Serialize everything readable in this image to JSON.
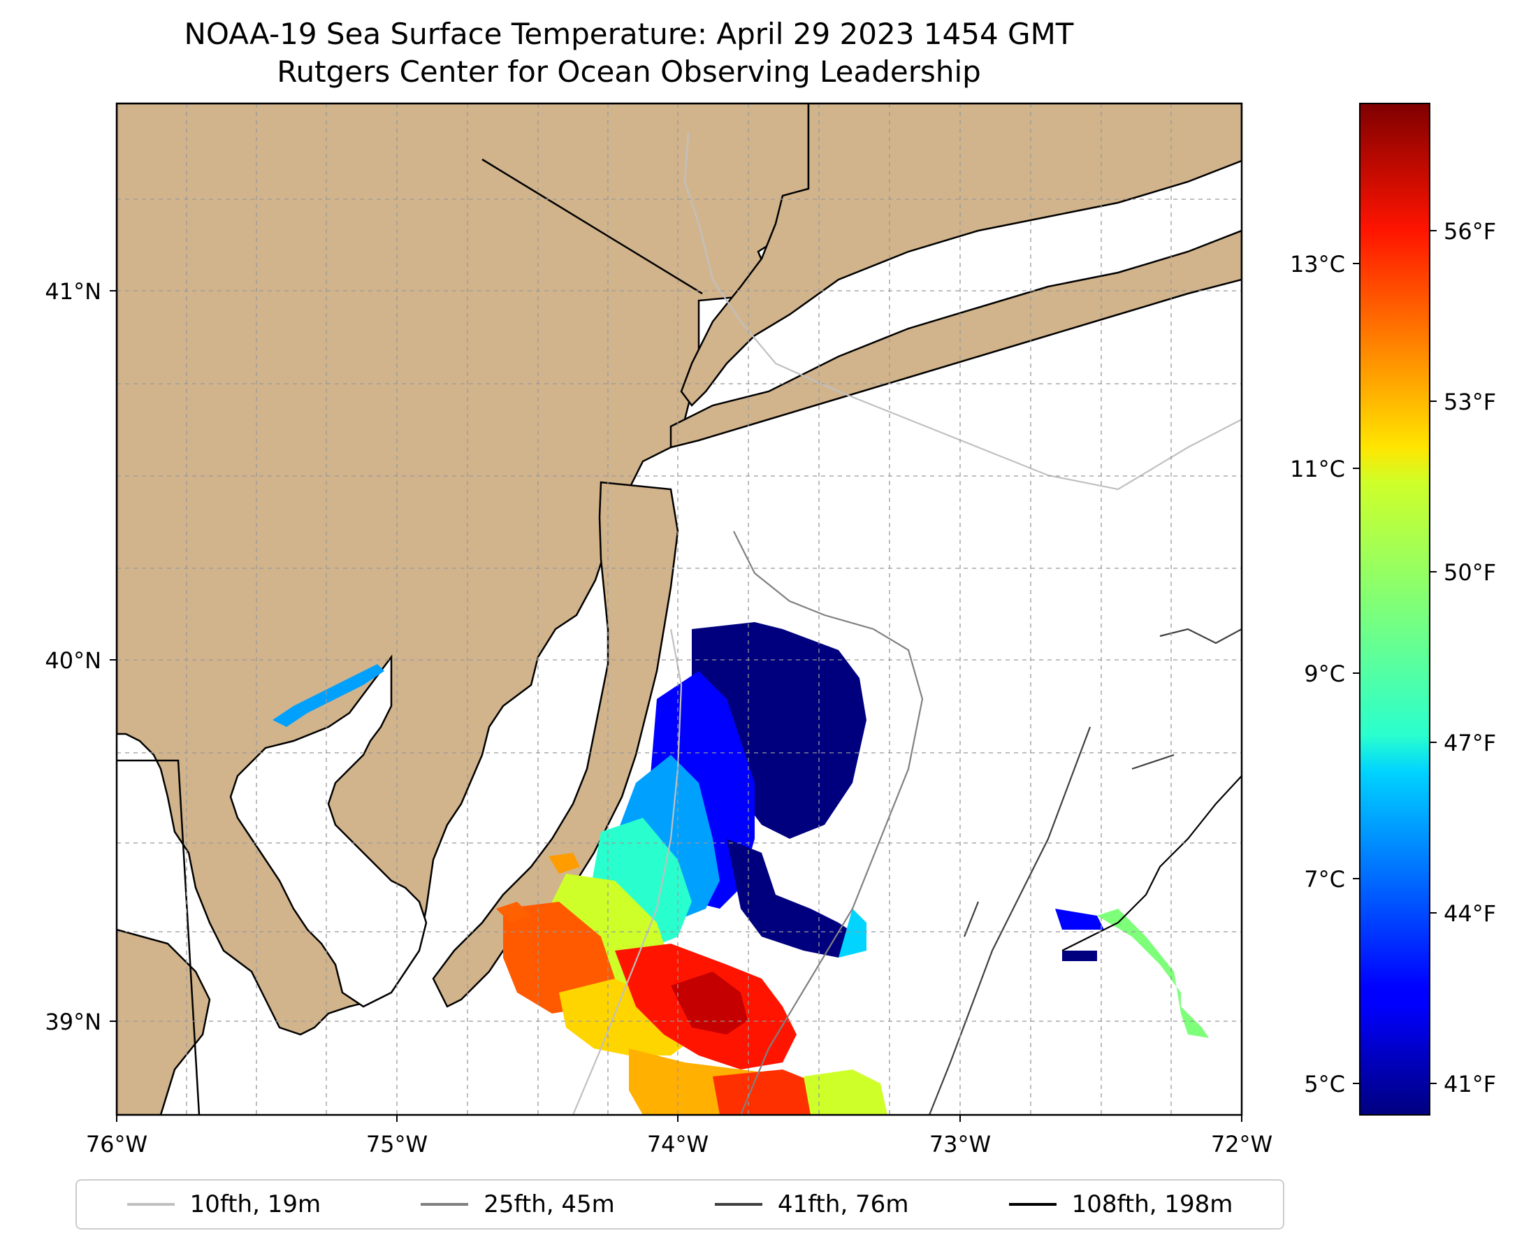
{
  "title": {
    "line1": "NOAA-19 Sea Surface Temperature: April 29 2023 1454 GMT",
    "line2": "Rutgers Center for Ocean Observing Leadership"
  },
  "map": {
    "lon_range": [
      -76,
      -72
    ],
    "lat_range": [
      38.7,
      41.5
    ],
    "lon_ticks": [
      "76°W",
      "75°W",
      "74°W",
      "73°W",
      "72°W"
    ],
    "lat_ticks": [
      "41°N",
      "40°N",
      "39°N"
    ],
    "land_color": "#d2b48c",
    "water_color": "#ffffff"
  },
  "colorbar": {
    "colormap": "jet",
    "range_celsius": [
      4.7,
      14.8
    ],
    "celsius_labels": [
      "13°C",
      "11°C",
      "9°C",
      "7°C",
      "5°C"
    ],
    "fahrenheit_labels": [
      "56°F",
      "53°F",
      "50°F",
      "47°F",
      "44°F",
      "41°F"
    ]
  },
  "legend": {
    "items": [
      {
        "label": "10fth, 19m",
        "color": "#c0c0c0"
      },
      {
        "label": "25fth, 45m",
        "color": "#808080"
      },
      {
        "label": "41fth, 76m",
        "color": "#404040"
      },
      {
        "label": "108fth, 198m",
        "color": "#000000"
      }
    ]
  }
}
